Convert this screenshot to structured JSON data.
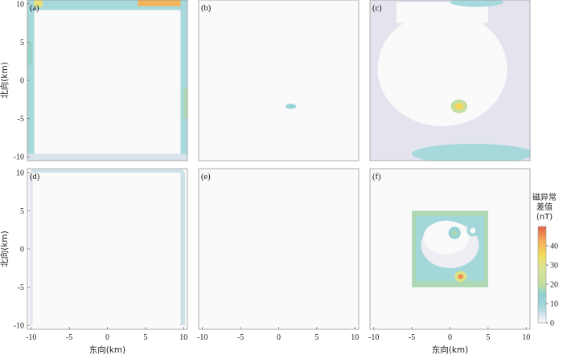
{
  "chart_data": {
    "type": "heatmap",
    "panels": [
      {
        "label": "(a)",
        "xlim": [
          -10.5,
          10.5
        ],
        "ylim": [
          -10.5,
          10.5
        ],
        "xticks": [
          -10,
          -5,
          0,
          5,
          10
        ],
        "yticks": [
          -10,
          -5,
          0,
          5,
          10
        ],
        "show_xticks": false,
        "show_yticks": true,
        "xlabel": "",
        "ylabel": "北向(km)",
        "background": "#fafafa",
        "features": [
          {
            "kind": "rect",
            "x": [
              -10.5,
              10.5
            ],
            "y": [
              9.2,
              10.5
            ],
            "value": 8
          },
          {
            "kind": "rect",
            "x": [
              4,
              10.5
            ],
            "y": [
              9.7,
              10.5
            ],
            "value": 42
          },
          {
            "kind": "rect",
            "x": [
              -10.2,
              -8.5
            ],
            "y": [
              9.6,
              10.5
            ],
            "value": 32
          },
          {
            "kind": "rect",
            "x": [
              -10.5,
              -9.6
            ],
            "y": [
              -10.5,
              10.5
            ],
            "value": 8
          },
          {
            "kind": "rect",
            "x": [
              -10.4,
              -9.9
            ],
            "y": [
              2,
              5
            ],
            "value": 16
          },
          {
            "kind": "rect",
            "x": [
              9.6,
              10.5
            ],
            "y": [
              -10.5,
              10.5
            ],
            "value": 8
          },
          {
            "kind": "rect",
            "x": [
              10.0,
              10.5
            ],
            "y": [
              -5,
              -1
            ],
            "value": 18
          },
          {
            "kind": "rect",
            "x": [
              -10.5,
              10.5
            ],
            "y": [
              -10.5,
              -9.6
            ],
            "value": 4
          }
        ]
      },
      {
        "label": "(b)",
        "xlim": [
          -10.5,
          10.5
        ],
        "ylim": [
          -10.5,
          10.5
        ],
        "xticks": [
          -10,
          -5,
          0,
          5,
          10
        ],
        "yticks": [
          -10,
          -5,
          0,
          5,
          10
        ],
        "show_xticks": false,
        "show_yticks": false,
        "xlabel": "",
        "ylabel": "",
        "background": "#fafafa",
        "features": [
          {
            "kind": "ellipse",
            "cx": 1.6,
            "cy": -3.4,
            "rx": 0.7,
            "ry": 0.35,
            "value": 9
          },
          {
            "kind": "ellipse",
            "cx": 1.7,
            "cy": -3.4,
            "rx": 0.25,
            "ry": 0.2,
            "value": 14
          }
        ]
      },
      {
        "label": "(c)",
        "xlim": [
          -10.5,
          10.5
        ],
        "ylim": [
          -10.5,
          10.5
        ],
        "xticks": [
          -10,
          -5,
          0,
          5,
          10
        ],
        "yticks": [
          -10,
          -5,
          0,
          5,
          10
        ],
        "show_xticks": false,
        "show_yticks": false,
        "xlabel": "",
        "ylabel": "",
        "background": "#e4e4ef",
        "features": [
          {
            "kind": "ellipse",
            "cx": -1,
            "cy": 1.5,
            "rx": 8.5,
            "ry": 7.5,
            "value": 0
          },
          {
            "kind": "rect",
            "x": [
              -7,
              5
            ],
            "y": [
              7.5,
              10.2
            ],
            "value": 0
          },
          {
            "kind": "ellipse",
            "cx": 3.5,
            "cy": 10.2,
            "rx": 3.5,
            "ry": 0.6,
            "value": 8
          },
          {
            "kind": "ellipse",
            "cx": 3,
            "cy": -9.6,
            "rx": 8,
            "ry": 1.3,
            "value": 8
          },
          {
            "kind": "ellipse",
            "cx": 1.2,
            "cy": -3.4,
            "rx": 1.1,
            "ry": 0.9,
            "value": 20
          },
          {
            "kind": "ellipse",
            "cx": 1.2,
            "cy": -3.4,
            "rx": 0.55,
            "ry": 0.45,
            "value": 36
          }
        ]
      },
      {
        "label": "(d)",
        "xlim": [
          -10.5,
          10.5
        ],
        "ylim": [
          -10.5,
          10.5
        ],
        "xticks": [
          -10,
          -5,
          0,
          5,
          10
        ],
        "yticks": [
          -10,
          -5,
          0,
          5,
          10
        ],
        "show_xticks": true,
        "show_yticks": true,
        "xlabel": "东向(km)",
        "ylabel": "北向(km)",
        "background": "#fafafa",
        "features": [
          {
            "kind": "rect",
            "x": [
              -10,
              10
            ],
            "y": [
              10.0,
              10.4
            ],
            "value": 5
          },
          {
            "kind": "rect",
            "x": [
              9.6,
              10.2
            ],
            "y": [
              -10,
              10
            ],
            "value": 5
          },
          {
            "kind": "rect",
            "x": [
              -10.2,
              -9.8
            ],
            "y": [
              -10,
              10
            ],
            "value": 3
          }
        ]
      },
      {
        "label": "(e)",
        "xlim": [
          -10.5,
          10.5
        ],
        "ylim": [
          -10.5,
          10.5
        ],
        "xticks": [
          -10,
          -5,
          0,
          5,
          10
        ],
        "yticks": [
          -10,
          -5,
          0,
          5,
          10
        ],
        "show_xticks": true,
        "show_yticks": false,
        "xlabel": "",
        "ylabel": "",
        "background": "#fafafa",
        "features": []
      },
      {
        "label": "(f)",
        "xlim": [
          -10.5,
          10.5
        ],
        "ylim": [
          -10.5,
          10.5
        ],
        "xticks": [
          -10,
          -5,
          0,
          5,
          10
        ],
        "yticks": [
          -10,
          -5,
          0,
          5,
          10
        ],
        "show_xticks": true,
        "show_yticks": false,
        "xlabel": "东向(km)",
        "ylabel": "",
        "background": "#fafafa",
        "features": [
          {
            "kind": "rect",
            "x": [
              -5,
              5
            ],
            "y": [
              -5,
              5
            ],
            "value": 18
          },
          {
            "kind": "rect",
            "x": [
              -4.5,
              4.5
            ],
            "y": [
              -4.2,
              4.3
            ],
            "value": 9
          },
          {
            "kind": "ellipse",
            "cx": 0,
            "cy": 0.5,
            "rx": 3.8,
            "ry": 3.0,
            "value": 2
          },
          {
            "kind": "ellipse",
            "cx": -0.5,
            "cy": 1.5,
            "rx": 3.0,
            "ry": 2.2,
            "value": 0
          },
          {
            "kind": "ellipse",
            "cx": 0.6,
            "cy": 2.1,
            "rx": 0.8,
            "ry": 0.8,
            "value": 13
          },
          {
            "kind": "ellipse",
            "cx": 0.6,
            "cy": 2.1,
            "rx": 0.35,
            "ry": 0.35,
            "value": 18
          },
          {
            "kind": "ellipse",
            "cx": 3.0,
            "cy": 2.4,
            "rx": 0.8,
            "ry": 0.75,
            "value": 9
          },
          {
            "kind": "ellipse",
            "cx": 3.0,
            "cy": 2.4,
            "rx": 0.35,
            "ry": 0.35,
            "value": 0
          },
          {
            "kind": "ellipse",
            "cx": 1.4,
            "cy": -3.6,
            "rx": 0.8,
            "ry": 0.7,
            "value": 30
          },
          {
            "kind": "ellipse",
            "cx": 1.4,
            "cy": -3.6,
            "rx": 0.35,
            "ry": 0.3,
            "value": 46
          }
        ]
      }
    ],
    "colorbar": {
      "title": [
        "磁异常",
        "差值",
        "(nT)"
      ],
      "range": [
        0,
        50
      ],
      "ticks": [
        0,
        10,
        20,
        30,
        40
      ],
      "stops": [
        {
          "value": 0,
          "color": "#fafafa"
        },
        {
          "value": 3,
          "color": "#e6e6f0"
        },
        {
          "value": 8,
          "color": "#a6d8dc"
        },
        {
          "value": 15,
          "color": "#8ecfd0"
        },
        {
          "value": 20,
          "color": "#c4dea0"
        },
        {
          "value": 28,
          "color": "#d8e49a"
        },
        {
          "value": 35,
          "color": "#f2dc5a"
        },
        {
          "value": 42,
          "color": "#f5b35a"
        },
        {
          "value": 50,
          "color": "#e8604a"
        }
      ]
    }
  }
}
